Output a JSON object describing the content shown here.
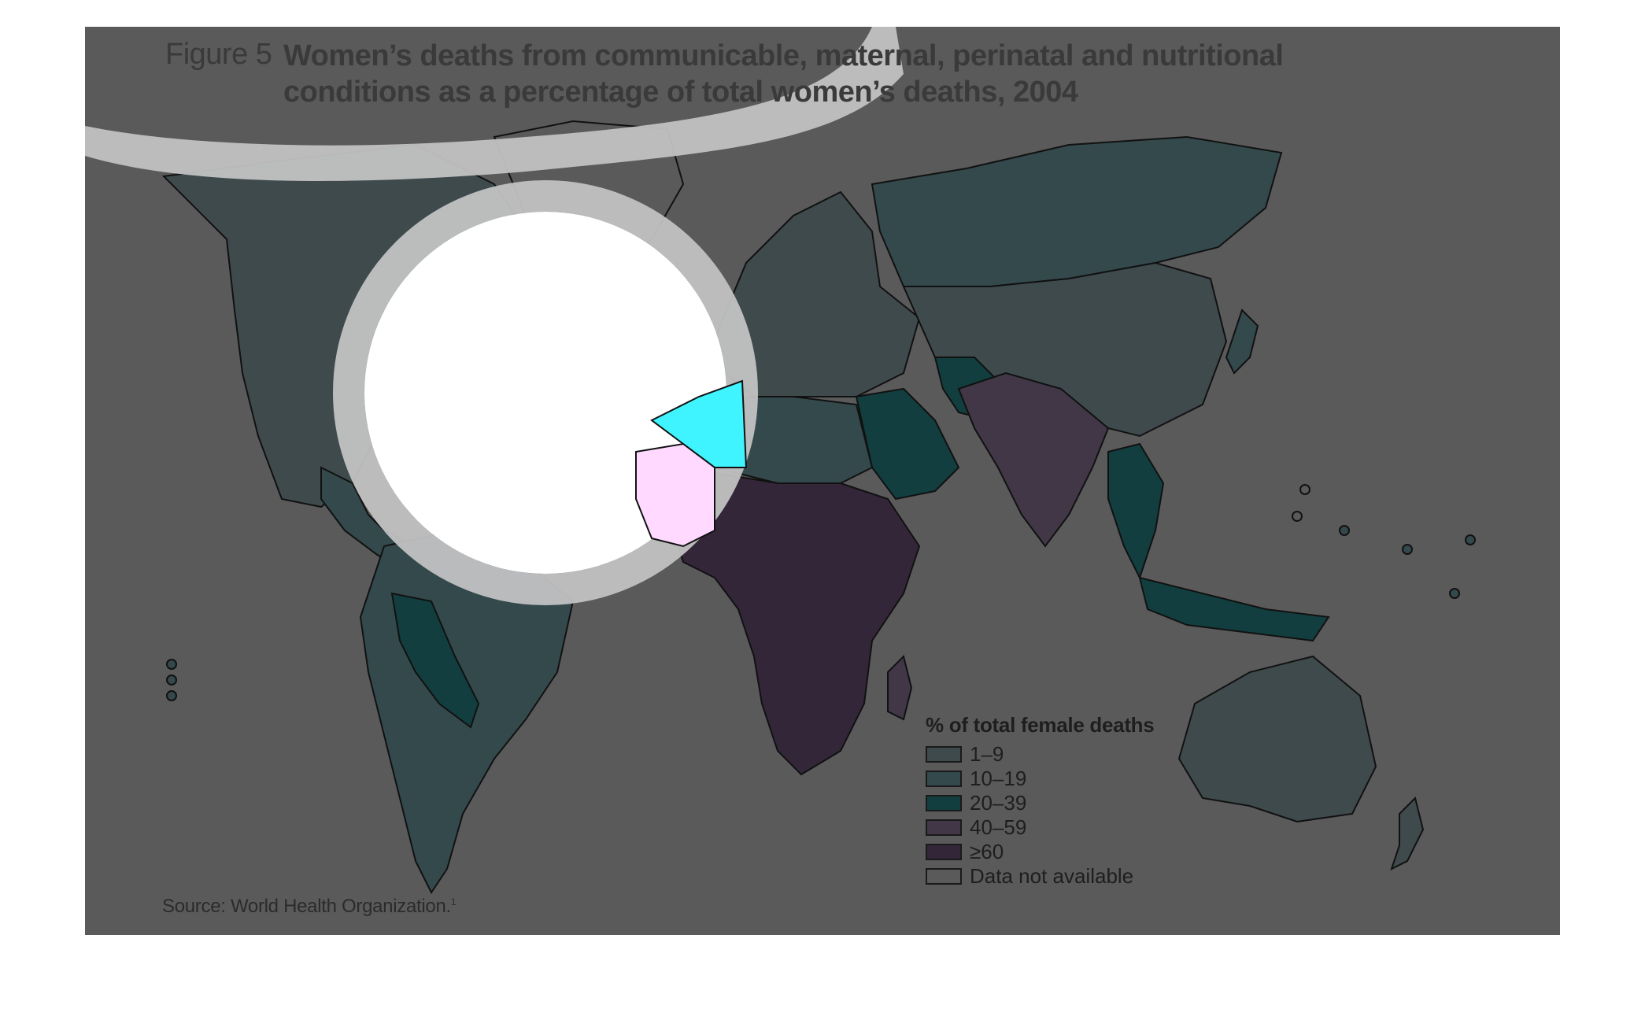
{
  "figure": {
    "label": "Figure 5",
    "title": "Women’s deaths from communicable, maternal, perinatal and nutritional conditions as a percentage of total women’s deaths, 2004"
  },
  "legend": {
    "title": "% of total female deaths",
    "items": [
      {
        "label": "1–9",
        "color": "#3f4a4d"
      },
      {
        "label": "10–19",
        "color": "#34494c"
      },
      {
        "label": "20–39",
        "color": "#123e3f"
      },
      {
        "label": "40–59",
        "color": "#413747"
      },
      {
        "label": "≥60",
        "color": "#332638"
      },
      {
        "label": "Data not available",
        "color": "#5a5a5a"
      }
    ]
  },
  "source": {
    "text": "Source: World Health Organization.",
    "note": "1"
  },
  "colors": {
    "panel": "#5a5a5a",
    "border": "#111111",
    "highlight_white": "#ffffff",
    "highlight_cyan": "#40f4ff",
    "highlight_pink": "#ffd9ff",
    "halo_gray": "#c2c2c2",
    "halo_teal": "#8aa9ad"
  }
}
